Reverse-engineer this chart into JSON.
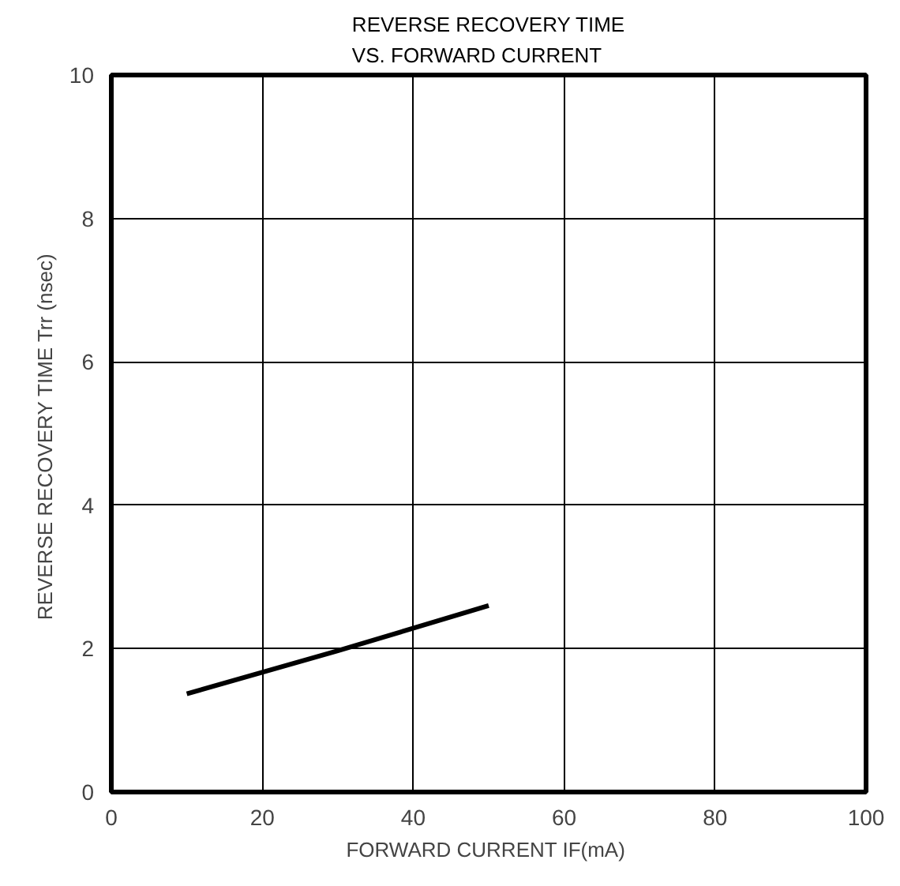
{
  "chart_data": {
    "type": "line",
    "title": "REVERSE RECOVERY TIME\nVS. FORWARD CURRENT",
    "xlabel": "FORWARD CURRENT  IF(mA)",
    "ylabel": "REVERSE RECOVERY TIME  Trr (nsec)",
    "x": [
      10,
      30,
      50
    ],
    "series": [
      {
        "color": "#000000",
        "values": [
          1.37,
          1.97,
          2.6
        ]
      }
    ],
    "xlim": [
      0,
      100
    ],
    "ylim": [
      0,
      10
    ],
    "xticks": [
      0,
      20,
      40,
      60,
      80,
      100
    ],
    "yticks": [
      0,
      2,
      4,
      6,
      8,
      10
    ],
    "grid": true,
    "marker": "none",
    "line_style": "solid"
  }
}
